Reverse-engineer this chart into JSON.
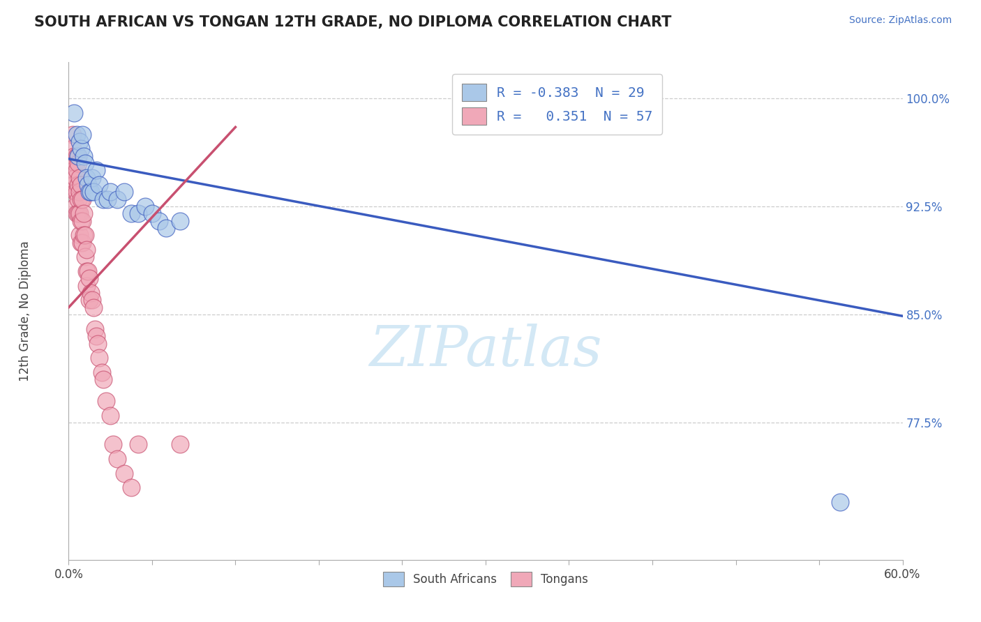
{
  "title": "SOUTH AFRICAN VS TONGAN 12TH GRADE, NO DIPLOMA CORRELATION CHART",
  "source_text": "Source: ZipAtlas.com",
  "ylabel": "12th Grade, No Diploma",
  "xlim": [
    0.0,
    0.6
  ],
  "ylim": [
    0.68,
    1.025
  ],
  "ytick_positions": [
    0.775,
    0.85,
    0.925,
    1.0
  ],
  "ytick_labels": [
    "77.5%",
    "85.0%",
    "92.5%",
    "100.0%"
  ],
  "south_african_x": [
    0.004,
    0.006,
    0.007,
    0.008,
    0.009,
    0.01,
    0.011,
    0.012,
    0.013,
    0.014,
    0.015,
    0.016,
    0.017,
    0.018,
    0.02,
    0.022,
    0.025,
    0.028,
    0.03,
    0.035,
    0.04,
    0.045,
    0.05,
    0.055,
    0.06,
    0.065,
    0.07,
    0.08,
    0.555
  ],
  "south_african_y": [
    0.99,
    0.975,
    0.96,
    0.97,
    0.965,
    0.975,
    0.96,
    0.955,
    0.945,
    0.94,
    0.935,
    0.935,
    0.945,
    0.935,
    0.95,
    0.94,
    0.93,
    0.93,
    0.935,
    0.93,
    0.935,
    0.92,
    0.92,
    0.925,
    0.92,
    0.915,
    0.91,
    0.915,
    0.72
  ],
  "tongan_x": [
    0.002,
    0.003,
    0.003,
    0.004,
    0.004,
    0.004,
    0.005,
    0.005,
    0.005,
    0.005,
    0.006,
    0.006,
    0.006,
    0.006,
    0.007,
    0.007,
    0.007,
    0.007,
    0.007,
    0.008,
    0.008,
    0.008,
    0.008,
    0.009,
    0.009,
    0.009,
    0.009,
    0.01,
    0.01,
    0.01,
    0.011,
    0.011,
    0.012,
    0.012,
    0.013,
    0.013,
    0.013,
    0.014,
    0.015,
    0.015,
    0.016,
    0.017,
    0.018,
    0.019,
    0.02,
    0.021,
    0.022,
    0.024,
    0.025,
    0.027,
    0.03,
    0.032,
    0.035,
    0.04,
    0.045,
    0.05,
    0.08
  ],
  "tongan_y": [
    0.94,
    0.975,
    0.965,
    0.96,
    0.95,
    0.94,
    0.955,
    0.945,
    0.935,
    0.925,
    0.96,
    0.95,
    0.935,
    0.92,
    0.96,
    0.955,
    0.94,
    0.93,
    0.92,
    0.945,
    0.935,
    0.92,
    0.905,
    0.94,
    0.93,
    0.915,
    0.9,
    0.93,
    0.915,
    0.9,
    0.92,
    0.905,
    0.905,
    0.89,
    0.895,
    0.88,
    0.87,
    0.88,
    0.875,
    0.86,
    0.865,
    0.86,
    0.855,
    0.84,
    0.835,
    0.83,
    0.82,
    0.81,
    0.805,
    0.79,
    0.78,
    0.76,
    0.75,
    0.74,
    0.73,
    0.76,
    0.76
  ],
  "blue_line_x": [
    0.0,
    0.6
  ],
  "blue_line_y": [
    0.958,
    0.849
  ],
  "pink_line_x": [
    0.0,
    0.12
  ],
  "pink_line_y": [
    0.855,
    0.98
  ],
  "sa_dot_color": "#aac8e8",
  "tongan_dot_color": "#f0a8b8",
  "blue_line_color": "#3a5bbf",
  "pink_line_color": "#c85070",
  "background_color": "#ffffff",
  "grid_color": "#cccccc",
  "watermark_text": "ZIPatlas",
  "watermark_color": "#cce4f4"
}
